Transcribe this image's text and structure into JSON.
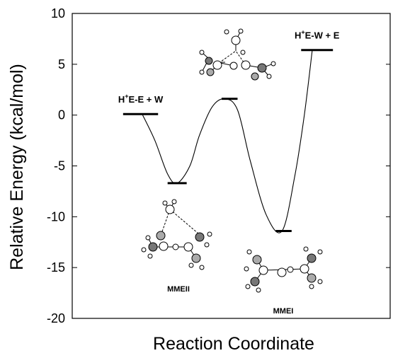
{
  "chart_data": {
    "type": "line",
    "title": "",
    "xlabel": "Reaction Coordinate",
    "ylabel": "Relative Energy (kcal/mol)",
    "ylim": [
      -20,
      10
    ],
    "yticks": [
      10,
      5,
      0,
      -5,
      -10,
      -15,
      -20
    ],
    "ytick_labels": [
      "10",
      "5",
      "0",
      "-5",
      "-10",
      "-15",
      "-20"
    ],
    "grid": false,
    "x_range": [
      0,
      10
    ],
    "levels": [
      {
        "id": "start",
        "label_main": "H",
        "label_sup": "+",
        "label_rest": "E-E + W",
        "x_start": 1.6,
        "x_end": 2.7,
        "energy": 0.1
      },
      {
        "id": "mmeii",
        "label": "MMEII",
        "x_start": 3.0,
        "x_end": 3.6,
        "energy": -6.7
      },
      {
        "id": "ts",
        "label": "",
        "x_start": 4.7,
        "x_end": 5.2,
        "energy": 1.6
      },
      {
        "id": "mmei",
        "label": "MMEI",
        "x_start": 6.4,
        "x_end": 6.9,
        "energy": -11.4
      },
      {
        "id": "end",
        "label_main": "H",
        "label_sup": "+",
        "label_rest": "E-W + E",
        "x_start": 7.2,
        "x_end": 8.2,
        "energy": 6.4
      }
    ],
    "profile_curve": [
      [
        2.2,
        0.1
      ],
      [
        2.6,
        -2.5
      ],
      [
        3.0,
        -5.8
      ],
      [
        3.3,
        -6.7
      ],
      [
        3.7,
        -5.0
      ],
      [
        4.0,
        -2.0
      ],
      [
        4.4,
        0.8
      ],
      [
        4.8,
        1.6
      ],
      [
        5.2,
        0.5
      ],
      [
        5.6,
        -4.5
      ],
      [
        6.1,
        -9.8
      ],
      [
        6.6,
        -11.4
      ],
      [
        7.0,
        -6.0
      ],
      [
        7.3,
        0.0
      ],
      [
        7.55,
        6.4
      ]
    ]
  }
}
